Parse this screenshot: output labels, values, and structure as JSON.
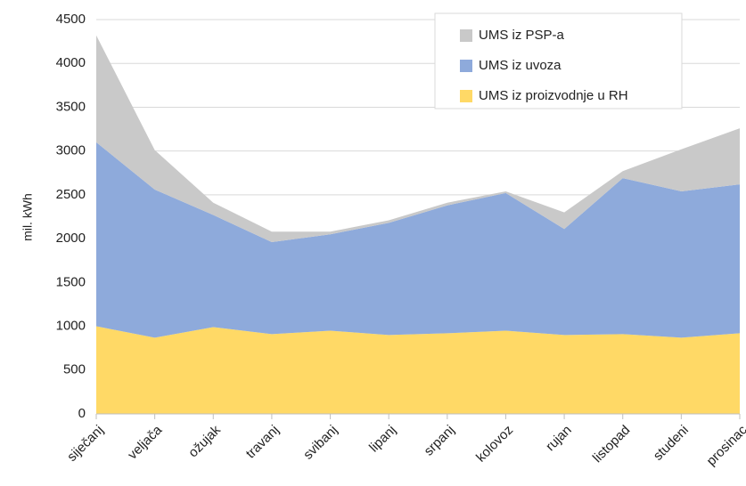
{
  "chart_data": {
    "type": "stacked-area",
    "y_label": "mil. kWh",
    "categories": [
      "siječanj",
      "veljača",
      "ožujak",
      "travanj",
      "svibanj",
      "lipanj",
      "srpanj",
      "kolovoz",
      "rujan",
      "listopad",
      "studeni",
      "prosinac"
    ],
    "series": [
      {
        "name": "UMS iz proizvodnje u RH",
        "color": "#ffd966",
        "values": [
          1000,
          870,
          990,
          910,
          950,
          900,
          920,
          950,
          900,
          910,
          870,
          920
        ]
      },
      {
        "name": "UMS iz uvoza",
        "color": "#8eaadb",
        "values": [
          2100,
          1690,
          1280,
          1050,
          1100,
          1280,
          1460,
          1570,
          1210,
          1780,
          1670,
          1700
        ]
      },
      {
        "name": "UMS iz PSP-a",
        "color": "#c9c9c9",
        "values": [
          1220,
          450,
          140,
          120,
          30,
          30,
          30,
          20,
          190,
          80,
          480,
          640
        ]
      }
    ],
    "ylim": [
      0,
      4500
    ],
    "yticks": [
      0,
      500,
      1000,
      1500,
      2000,
      2500,
      3000,
      3500,
      4000,
      4500
    ],
    "grid": true,
    "legend": "top-right"
  }
}
